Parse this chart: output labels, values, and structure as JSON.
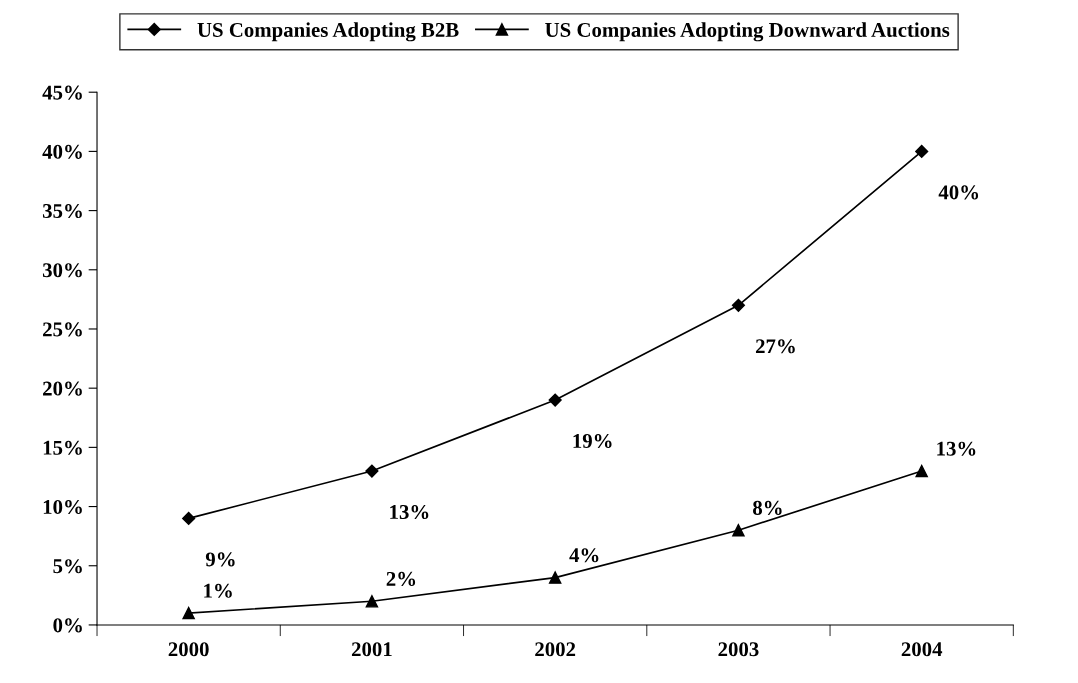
{
  "chart_data": {
    "type": "line",
    "categories": [
      "2000",
      "2001",
      "2002",
      "2003",
      "2004"
    ],
    "series": [
      {
        "name": "US Companies Adopting B2B",
        "color": "#000000",
        "marker": "diamond",
        "values": [
          9,
          13,
          19,
          27,
          40
        ],
        "value_labels": [
          "9%",
          "13%",
          "19%",
          "27%",
          "40%"
        ]
      },
      {
        "name": "US Companies Adopting Downward Auctions",
        "color": "#000000",
        "marker": "triangle",
        "values": [
          1,
          2,
          4,
          8,
          13
        ],
        "value_labels": [
          "1%",
          "2%",
          "4%",
          "8%",
          "13%"
        ]
      }
    ],
    "ylim": [
      0,
      45
    ],
    "yticks": [
      {
        "value": 0,
        "label": "0%"
      },
      {
        "value": 5,
        "label": "5%"
      },
      {
        "value": 10,
        "label": "10%"
      },
      {
        "value": 15,
        "label": "15%"
      },
      {
        "value": 20,
        "label": "20%"
      },
      {
        "value": 25,
        "label": "25%"
      },
      {
        "value": 30,
        "label": "30%"
      },
      {
        "value": 35,
        "label": "35%"
      },
      {
        "value": 40,
        "label": "40%"
      },
      {
        "value": 45,
        "label": "45%"
      }
    ],
    "grid": false,
    "legend": "top",
    "line_style": "solid"
  }
}
